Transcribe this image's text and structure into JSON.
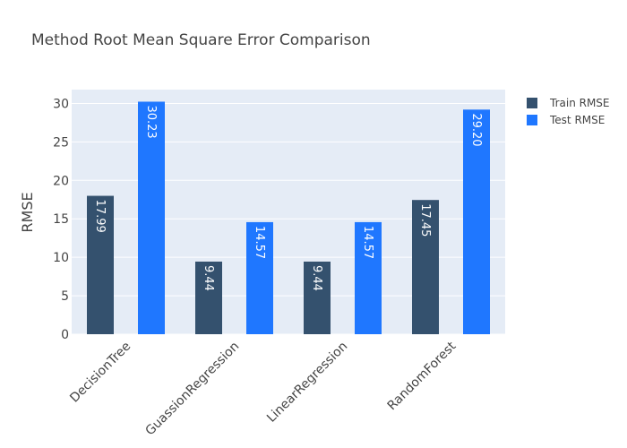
{
  "chart_data": {
    "type": "bar",
    "title": "Method Root Mean Square Error Comparison",
    "xlabel": "",
    "ylabel": "RMSE",
    "categories": [
      "DecisionTree",
      "GuassionRegression",
      "LinearRegression",
      "RandomForest"
    ],
    "series": [
      {
        "name": "Train RMSE",
        "values": [
          17.99,
          9.44,
          9.44,
          17.45
        ],
        "color": "#34516e"
      },
      {
        "name": "Test RMSE",
        "values": [
          30.23,
          14.57,
          14.57,
          29.2
        ],
        "color": "#1f77ff"
      }
    ],
    "data_labels": [
      [
        "17.99",
        "9.44",
        "9.44",
        "17.45"
      ],
      [
        "30.23",
        "14.57",
        "14.57",
        "29.20"
      ]
    ],
    "ylim": [
      0,
      31.8
    ],
    "yticks": [
      0,
      5,
      10,
      15,
      20,
      25,
      30
    ],
    "grid": true,
    "legend_position": "top-right",
    "plot_background": "#e5ecf6"
  }
}
